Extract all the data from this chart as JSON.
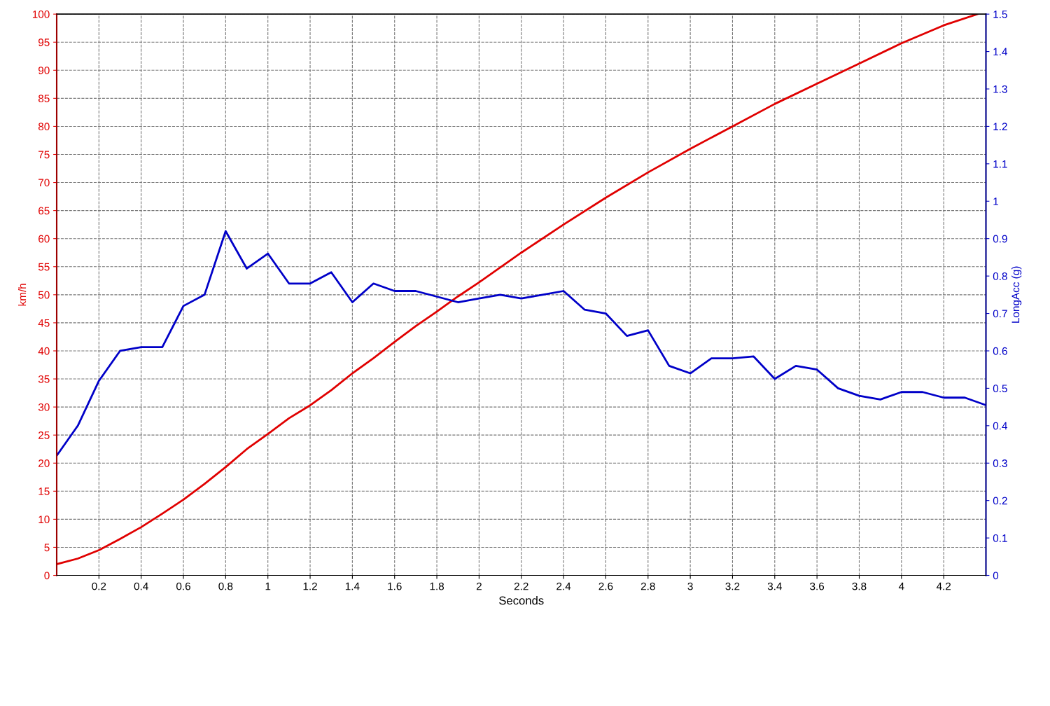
{
  "chart_data": {
    "type": "line",
    "xlabel": "Seconds",
    "ylabel": "km/h",
    "y2label": "LongAcc (g)",
    "xlim": [
      0,
      4.4
    ],
    "xticks": [
      0.2,
      0.4,
      0.6,
      0.8,
      1,
      1.2,
      1.4,
      1.6,
      1.8,
      2,
      2.2,
      2.4,
      2.6,
      2.8,
      3,
      3.2,
      3.4,
      3.6,
      3.8,
      4,
      4.2
    ],
    "ylim": [
      0,
      100
    ],
    "yticks": [
      0,
      5,
      10,
      15,
      20,
      25,
      30,
      35,
      40,
      45,
      50,
      55,
      60,
      65,
      70,
      75,
      80,
      85,
      90,
      95,
      100
    ],
    "y2lim": [
      0,
      1.5
    ],
    "y2ticks": [
      0,
      0.1,
      0.2,
      0.3,
      0.4,
      0.5,
      0.6,
      0.7,
      0.8,
      0.9,
      1,
      1.1,
      1.2,
      1.3,
      1.4,
      1.5
    ],
    "grid": true,
    "line_style": "solid",
    "marker": "none",
    "series": [
      {
        "color": "#e00000",
        "x": [
          0,
          0.1,
          0.2,
          0.3,
          0.4,
          0.5,
          0.6,
          0.7,
          0.8,
          0.9,
          1,
          1.1,
          1.2,
          1.3,
          1.4,
          1.5,
          1.6,
          1.7,
          1.8,
          1.9,
          2,
          2.2,
          2.4,
          2.6,
          2.8,
          3,
          3.2,
          3.4,
          3.6,
          3.8,
          4,
          4.2,
          4.36
        ],
        "values": [
          2,
          3,
          4.5,
          6.5,
          8.6,
          11,
          13.5,
          16.3,
          19.3,
          22.5,
          25.2,
          28,
          30.3,
          33,
          36,
          38.7,
          41.6,
          44.4,
          47,
          49.7,
          52.2,
          57.5,
          62.5,
          67.3,
          71.8,
          76,
          80,
          84,
          87.6,
          91.2,
          94.8,
          98,
          100
        ]
      },
      {
        "color": "#0000c8",
        "axis": "y2",
        "x": [
          0,
          0.1,
          0.2,
          0.3,
          0.4,
          0.5,
          0.6,
          0.7,
          0.8,
          0.9,
          1,
          1.1,
          1.2,
          1.3,
          1.4,
          1.5,
          1.6,
          1.7,
          1.8,
          1.9,
          2,
          2.1,
          2.2,
          2.3,
          2.4,
          2.5,
          2.6,
          2.7,
          2.8,
          2.9,
          3,
          3.1,
          3.2,
          3.3,
          3.4,
          3.5,
          3.6,
          3.7,
          3.8,
          3.9,
          4,
          4.1,
          4.2,
          4.3,
          4.4
        ],
        "values": [
          0.32,
          0.4,
          0.52,
          0.6,
          0.61,
          0.61,
          0.72,
          0.75,
          0.92,
          0.82,
          0.86,
          0.78,
          0.78,
          0.81,
          0.73,
          0.78,
          0.76,
          0.76,
          0.745,
          0.73,
          0.74,
          0.75,
          0.74,
          0.75,
          0.76,
          0.71,
          0.7,
          0.64,
          0.655,
          0.56,
          0.54,
          0.58,
          0.58,
          0.585,
          0.525,
          0.56,
          0.55,
          0.5,
          0.48,
          0.47,
          0.49,
          0.49,
          0.475,
          0.475,
          0.455
        ]
      }
    ]
  }
}
